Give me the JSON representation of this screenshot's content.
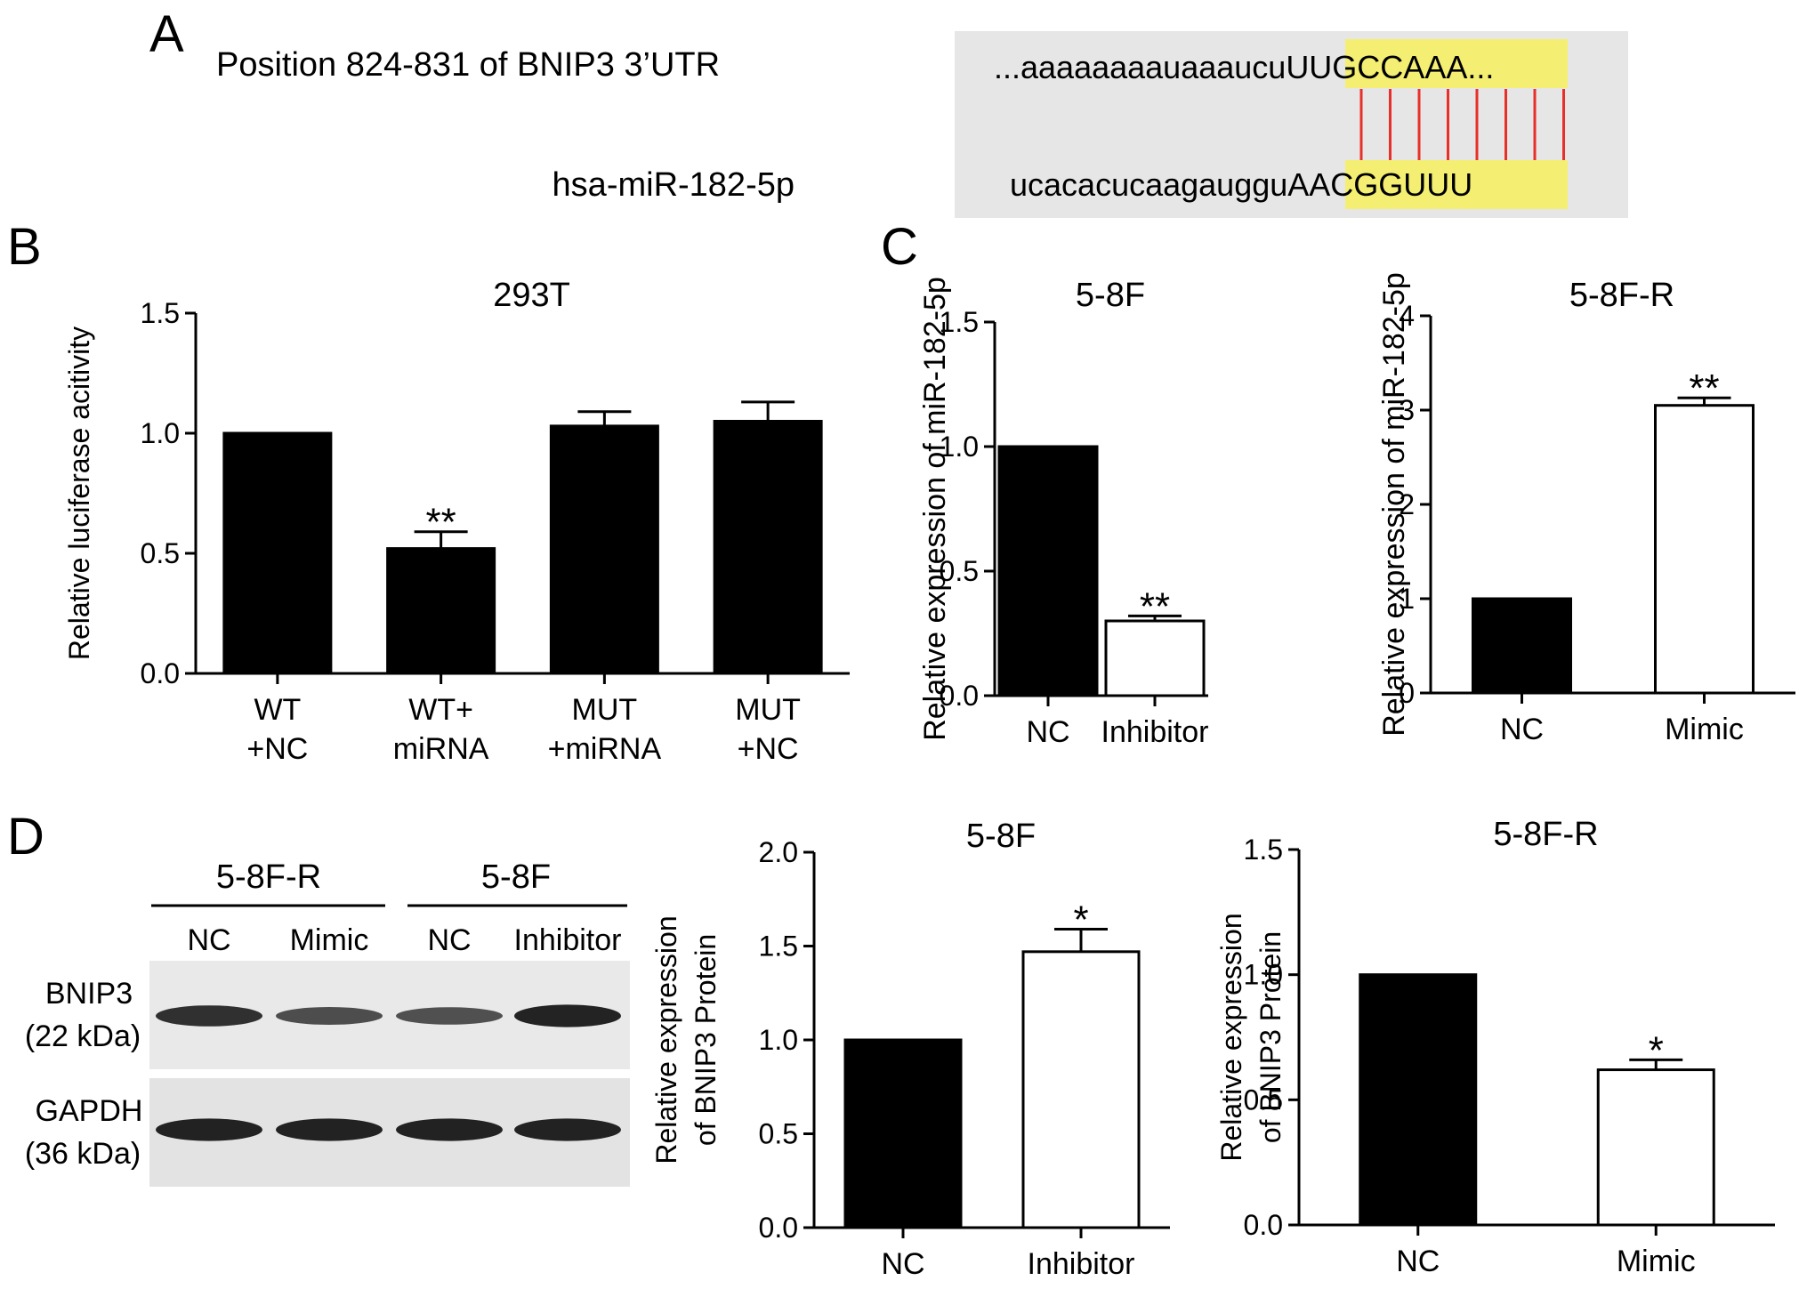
{
  "panels": {
    "A": {
      "letter": "A",
      "utr_label": "Position 824-831 of BNIP3 3’UTR",
      "mirna_label": "hsa-miR-182-5p",
      "top_seq_prefix": "...aaaaaaaauaaaucu",
      "top_seq_seed": "UUGCCAAA",
      "top_seq_suffix": "...",
      "bottom_seq_prefix": "ucacacucaagauggu",
      "bottom_seq_seed": "AACGGUUU",
      "seed_highlight_color": "#f4ef72",
      "box_color": "#e6e6e6",
      "pair_line_color": "#e8302a",
      "pair_count": 8
    },
    "B": {
      "letter": "B"
    },
    "C": {
      "letter": "C"
    },
    "D": {
      "letter": "D",
      "blot": {
        "group_labels": [
          "5-8F-R",
          "5-8F"
        ],
        "lane_labels": [
          "NC",
          "Mimic",
          "NC",
          "Inhibitor"
        ],
        "rows": [
          {
            "name": "BNIP3",
            "size": "(22 kDa)",
            "band_intensity": [
              0.85,
              0.62,
              0.6,
              0.95
            ]
          },
          {
            "name": "GAPDH",
            "size": "(36 kDa)",
            "band_intensity": [
              0.95,
              0.95,
              0.95,
              0.95
            ]
          }
        ]
      }
    }
  },
  "chart_data": [
    {
      "id": "B",
      "type": "bar",
      "title": "293T",
      "ylabel": "Relative luciferase acitivity",
      "categories": [
        [
          "WT",
          "+NC"
        ],
        [
          "WT+",
          "miRNA"
        ],
        [
          "MUT",
          "+miRNA"
        ],
        [
          "MUT",
          "+NC"
        ]
      ],
      "values": [
        1.0,
        0.52,
        1.03,
        1.05
      ],
      "errors": [
        0,
        0.07,
        0.06,
        0.08
      ],
      "fills": [
        "#000000",
        "#000000",
        "#000000",
        "#000000"
      ],
      "annotations": [
        "",
        "**",
        "",
        ""
      ],
      "ylim": [
        0,
        1.5
      ],
      "yticks": [
        "0.0",
        "0.5",
        "1.0",
        "1.5"
      ]
    },
    {
      "id": "C1",
      "type": "bar",
      "title": "5-8F",
      "ylabel": "Relative expression of miR-182-5p",
      "categories": [
        [
          "NC"
        ],
        [
          "Inhibitor"
        ]
      ],
      "values": [
        1.0,
        0.3
      ],
      "errors": [
        0,
        0.02
      ],
      "fills": [
        "#000000",
        "#ffffff"
      ],
      "annotations": [
        "",
        "**"
      ],
      "ylim": [
        0,
        1.5
      ],
      "yticks": [
        "0.0",
        "0.5",
        "1.0",
        "1.5"
      ]
    },
    {
      "id": "C2",
      "type": "bar",
      "title": "5-8F-R",
      "ylabel": "Relative expression of miR-182-5p",
      "categories": [
        [
          "NC"
        ],
        [
          "Mimic"
        ]
      ],
      "values": [
        1.0,
        3.05
      ],
      "errors": [
        0,
        0.08
      ],
      "fills": [
        "#000000",
        "#ffffff"
      ],
      "annotations": [
        "",
        "**"
      ],
      "ylim": [
        0,
        4
      ],
      "yticks": [
        "0",
        "1",
        "2",
        "3",
        "4"
      ]
    },
    {
      "id": "D1",
      "type": "bar",
      "title": "5-8F",
      "ylabel": [
        "Relative expression",
        "of BNIP3 Protein"
      ],
      "categories": [
        [
          "NC"
        ],
        [
          "Inhibitor"
        ]
      ],
      "values": [
        1.0,
        1.47
      ],
      "errors": [
        0,
        0.12
      ],
      "fills": [
        "#000000",
        "#ffffff"
      ],
      "annotations": [
        "",
        "*"
      ],
      "ylim": [
        0,
        2.0
      ],
      "yticks": [
        "0.0",
        "0.5",
        "1.0",
        "1.5",
        "2.0"
      ]
    },
    {
      "id": "D2",
      "type": "bar",
      "title": "5-8F-R",
      "ylabel": [
        "Relative expression",
        "of BNIP3 Protein"
      ],
      "categories": [
        [
          "NC"
        ],
        [
          "Mimic"
        ]
      ],
      "values": [
        1.0,
        0.62
      ],
      "errors": [
        0,
        0.04
      ],
      "fills": [
        "#000000",
        "#ffffff"
      ],
      "annotations": [
        "",
        "*"
      ],
      "ylim": [
        0,
        1.5
      ],
      "yticks": [
        "0.0",
        "0.5",
        "1.0",
        "1.5"
      ]
    }
  ]
}
